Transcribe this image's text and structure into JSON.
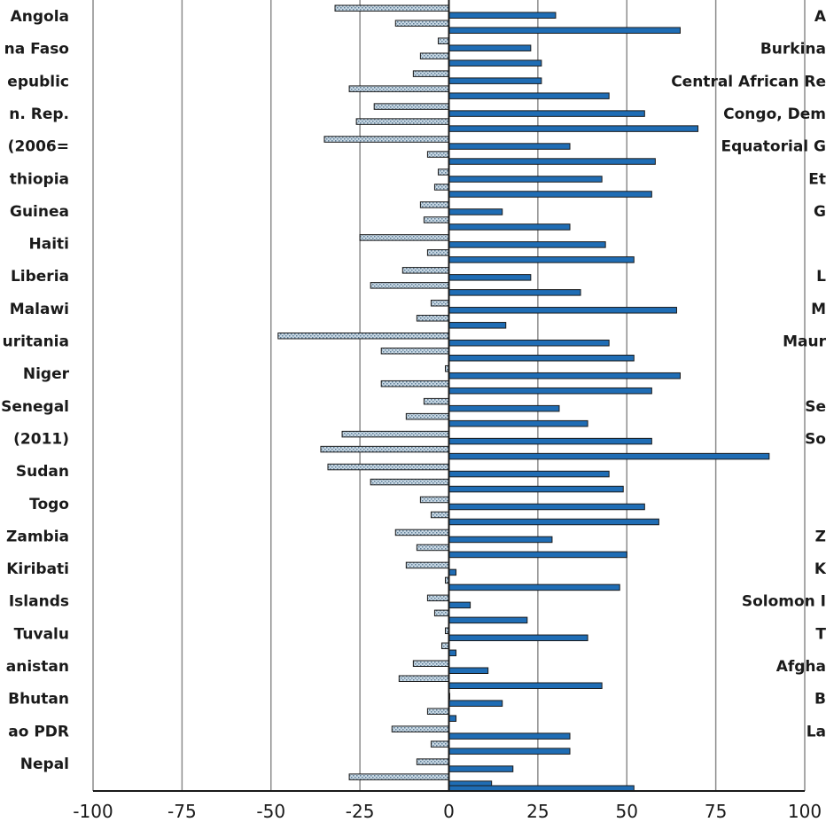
{
  "chart_data": {
    "type": "bar",
    "orientation": "horizontal",
    "grid": true,
    "xlim": [
      -100,
      100
    ],
    "x_ticks": [
      "-100",
      "-75",
      "-50",
      "-25",
      "0",
      "25",
      "50",
      "75",
      "100"
    ],
    "left_labels": [
      "Angola",
      "na Faso",
      "epublic",
      "n. Rep.",
      "(2006=",
      "thiopia",
      "Guinea",
      "Haiti",
      "Liberia",
      "Malawi",
      "uritania",
      "Niger",
      "Senegal",
      "(2011)",
      "Sudan",
      "Togo",
      "Zambia",
      "Kiribati",
      "Islands",
      "Tuvalu",
      "anistan",
      "Bhutan",
      "ao PDR",
      "Nepal"
    ],
    "right_labels": [
      "A",
      "Burkina",
      "Central African Re",
      "Congo, Dem",
      "Equatorial G",
      "Et",
      "G",
      "",
      "L",
      "M",
      "Maur",
      "",
      "Se",
      "So",
      "",
      "",
      "Z",
      "K",
      "Solomon I",
      "T",
      "Afgha",
      "B",
      "La",
      ""
    ],
    "colors": {
      "solid_series": "#1f6db5",
      "hatched_series": "#c9d8e4",
      "bar_outline": "#1a1a1a",
      "grid": "#8c8c8c"
    },
    "series": [
      {
        "pattern": "hatched",
        "values": [
          -32,
          -3,
          -10,
          -21,
          -35,
          -3,
          -8,
          -25,
          -13,
          -5,
          -48,
          -1,
          -7,
          -30,
          -34,
          -8,
          -15,
          -12,
          -6,
          -1,
          -10,
          0,
          -16,
          -9
        ]
      },
      {
        "pattern": "hatched",
        "values": [
          -15,
          -8,
          -28,
          -26,
          -6,
          -4,
          -7,
          -6,
          -22,
          -9,
          -19,
          -19,
          -12,
          -36,
          -22,
          -5,
          -9,
          -1,
          -4,
          -2,
          -14,
          -6,
          -5,
          -28
        ]
      },
      {
        "pattern": "solid",
        "values": [
          30,
          23,
          26,
          55,
          34,
          43,
          15,
          44,
          23,
          64,
          45,
          65,
          31,
          57,
          45,
          55,
          29,
          2,
          6,
          39,
          11,
          15,
          34,
          18
        ]
      },
      {
        "pattern": "solid",
        "values": [
          65,
          26,
          45,
          70,
          58,
          57,
          34,
          52,
          37,
          16,
          52,
          57,
          39,
          90,
          49,
          59,
          50,
          48,
          22,
          2,
          43,
          2,
          34,
          12
        ]
      }
    ],
    "last_partial_bar": {
      "pattern": "solid",
      "value": 52
    }
  }
}
